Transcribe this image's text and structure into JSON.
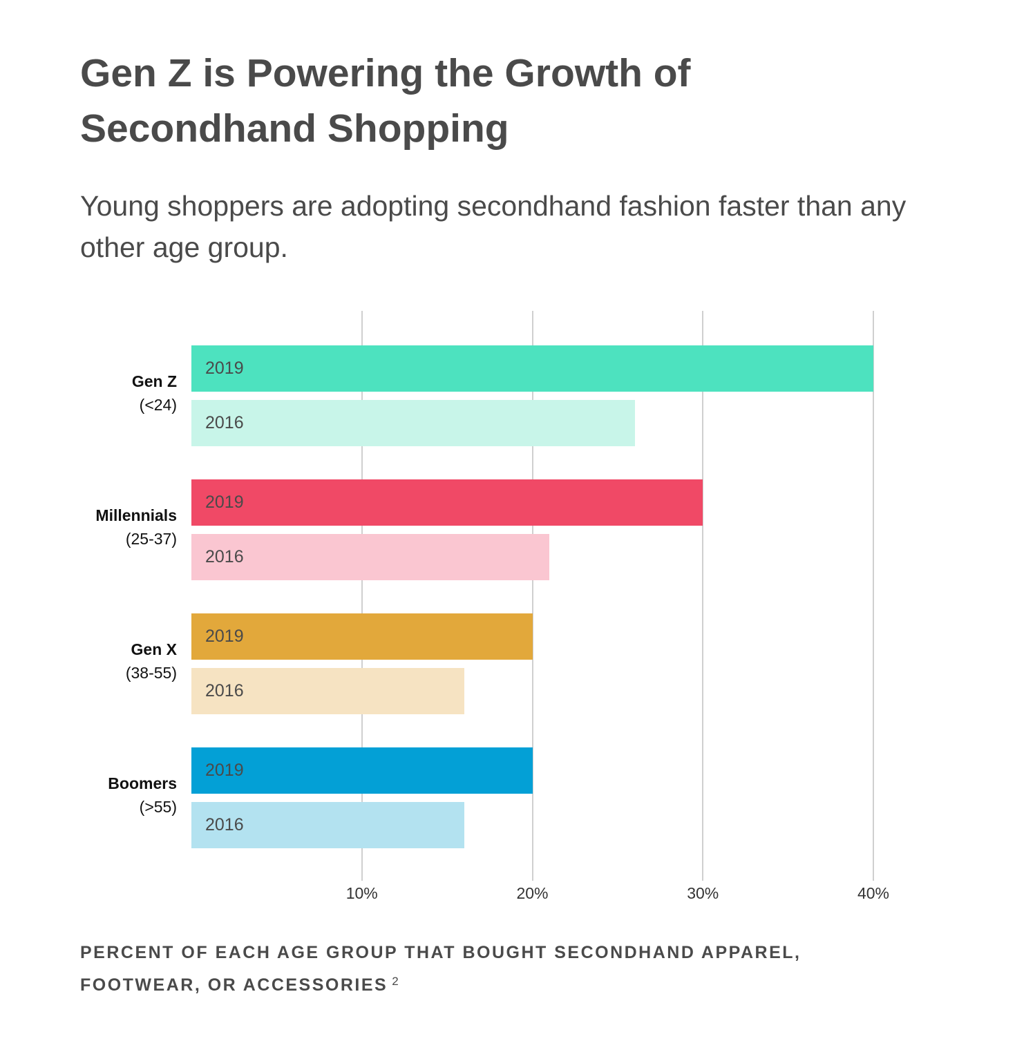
{
  "title": "Gen Z is Powering the Growth of Secondhand Shopping",
  "subtitle": "Young shoppers are adopting secondhand fashion faster than any other age group.",
  "footnote": "PERCENT OF EACH AGE GROUP THAT BOUGHT SECONDHAND APPAREL, FOOTWEAR, OR ACCESSORIES",
  "footnote_ref": "2",
  "chart_data": {
    "type": "bar",
    "orientation": "horizontal",
    "xlim": [
      0,
      40
    ],
    "xticks": [
      "10%",
      "20%",
      "30%",
      "40%"
    ],
    "xtick_values": [
      10,
      20,
      30,
      40
    ],
    "grid": true,
    "categories": [
      {
        "name": "Gen Z",
        "range": "(<24)"
      },
      {
        "name": "Millennials",
        "range": "(25-37)"
      },
      {
        "name": "Gen X",
        "range": "(38-55)"
      },
      {
        "name": "Boomers",
        "range": "(>55)"
      }
    ],
    "series": [
      {
        "name": "2019",
        "values": [
          40,
          30,
          20,
          20
        ],
        "colors": [
          "#4de2bf",
          "#f04966",
          "#e2a83b",
          "#03a0d6"
        ]
      },
      {
        "name": "2016",
        "values": [
          26,
          21,
          16,
          16
        ],
        "colors": [
          "#c8f5e9",
          "#fac6d1",
          "#f6e3c2",
          "#b3e2f0"
        ]
      }
    ]
  }
}
